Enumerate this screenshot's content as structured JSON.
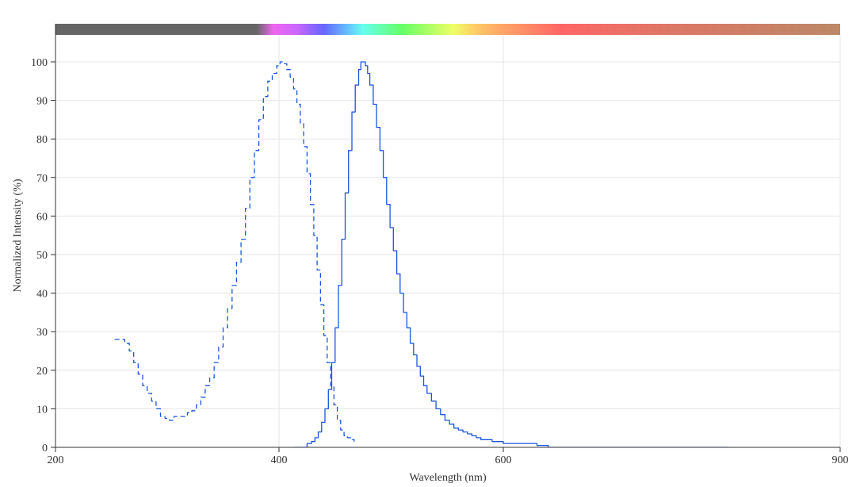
{
  "chart_data": {
    "type": "line",
    "title": "",
    "xlabel": "Wavelength (nm)",
    "ylabel": "Normalized Intensity (%)",
    "xlim": [
      200,
      900
    ],
    "ylim": [
      0,
      100
    ],
    "x_ticks": [
      200,
      400,
      600,
      900
    ],
    "y_ticks": [
      0,
      10,
      20,
      30,
      40,
      50,
      60,
      70,
      80,
      90,
      100
    ],
    "grid": true,
    "spectrum_bar": {
      "stops": [
        {
          "nm": 200,
          "color": "#666666"
        },
        {
          "nm": 380,
          "color": "#666666"
        },
        {
          "nm": 395,
          "color": "#ee66ee"
        },
        {
          "nm": 415,
          "color": "#cc66ff"
        },
        {
          "nm": 440,
          "color": "#6666ff"
        },
        {
          "nm": 460,
          "color": "#66bbff"
        },
        {
          "nm": 475,
          "color": "#66ffee"
        },
        {
          "nm": 510,
          "color": "#66ff66"
        },
        {
          "nm": 555,
          "color": "#eeff66"
        },
        {
          "nm": 575,
          "color": "#ffcc66"
        },
        {
          "nm": 595,
          "color": "#ffaa66"
        },
        {
          "nm": 650,
          "color": "#ff6666"
        },
        {
          "nm": 750,
          "color": "#dd7766"
        },
        {
          "nm": 900,
          "color": "#bb8866"
        }
      ]
    },
    "series": [
      {
        "style": "dashed",
        "color": "#1a55dd",
        "x": [
          253,
          258,
          262,
          266,
          270,
          274,
          278,
          282,
          286,
          290,
          294,
          298,
          302,
          306,
          310,
          314,
          318,
          322,
          326,
          330,
          334,
          338,
          342,
          346,
          350,
          354,
          358,
          362,
          366,
          370,
          374,
          378,
          382,
          386,
          390,
          394,
          398,
          401,
          404,
          407,
          410,
          413,
          416,
          419,
          422,
          425,
          428,
          431,
          434,
          437,
          440,
          443,
          446,
          449,
          452,
          455,
          458,
          461,
          464,
          467
        ],
        "y": [
          28,
          28,
          27,
          25,
          22,
          19,
          16,
          14,
          12,
          10,
          8,
          7.5,
          7,
          8,
          8,
          8,
          9,
          9.5,
          11,
          13,
          16,
          18,
          22,
          26,
          31,
          36,
          42,
          48,
          54,
          62,
          70,
          77,
          85,
          91,
          95,
          97,
          99,
          100,
          99.5,
          98,
          96,
          93,
          89,
          84,
          78,
          71,
          63,
          55,
          46,
          37,
          29,
          22,
          16,
          11,
          7,
          4.5,
          3,
          2.5,
          2,
          1.5
        ]
      },
      {
        "style": "solid",
        "color": "#1a55dd",
        "x": [
          413,
          420,
          425,
          429,
          432,
          435,
          438,
          441,
          444,
          447,
          450,
          453,
          456,
          459,
          462,
          465,
          468,
          471,
          473,
          475,
          477,
          479,
          481,
          484,
          487,
          490,
          493,
          496,
          499,
          502,
          505,
          508,
          511,
          514,
          517,
          520,
          523,
          526,
          529,
          532,
          536,
          540,
          544,
          548,
          552,
          556,
          560,
          564,
          568,
          572,
          576,
          580,
          585,
          590,
          595,
          600,
          606,
          612,
          618,
          624,
          630,
          640,
          660,
          700,
          750,
          800
        ],
        "y": [
          0,
          0,
          1,
          1.5,
          2.5,
          4,
          6.5,
          10,
          15,
          22,
          31,
          42,
          54,
          66,
          77,
          87,
          94,
          98,
          100,
          100,
          99,
          97,
          94,
          89,
          83,
          77,
          70,
          63,
          57,
          51,
          45,
          40,
          35,
          31,
          27,
          24,
          21,
          18.5,
          16,
          14,
          12,
          10,
          8.5,
          7,
          6,
          5,
          4.5,
          4,
          3.5,
          3,
          2.5,
          2,
          2,
          1.5,
          1.5,
          1,
          1,
          1,
          1,
          1,
          0.5,
          0,
          0,
          0,
          0,
          0
        ]
      }
    ]
  }
}
